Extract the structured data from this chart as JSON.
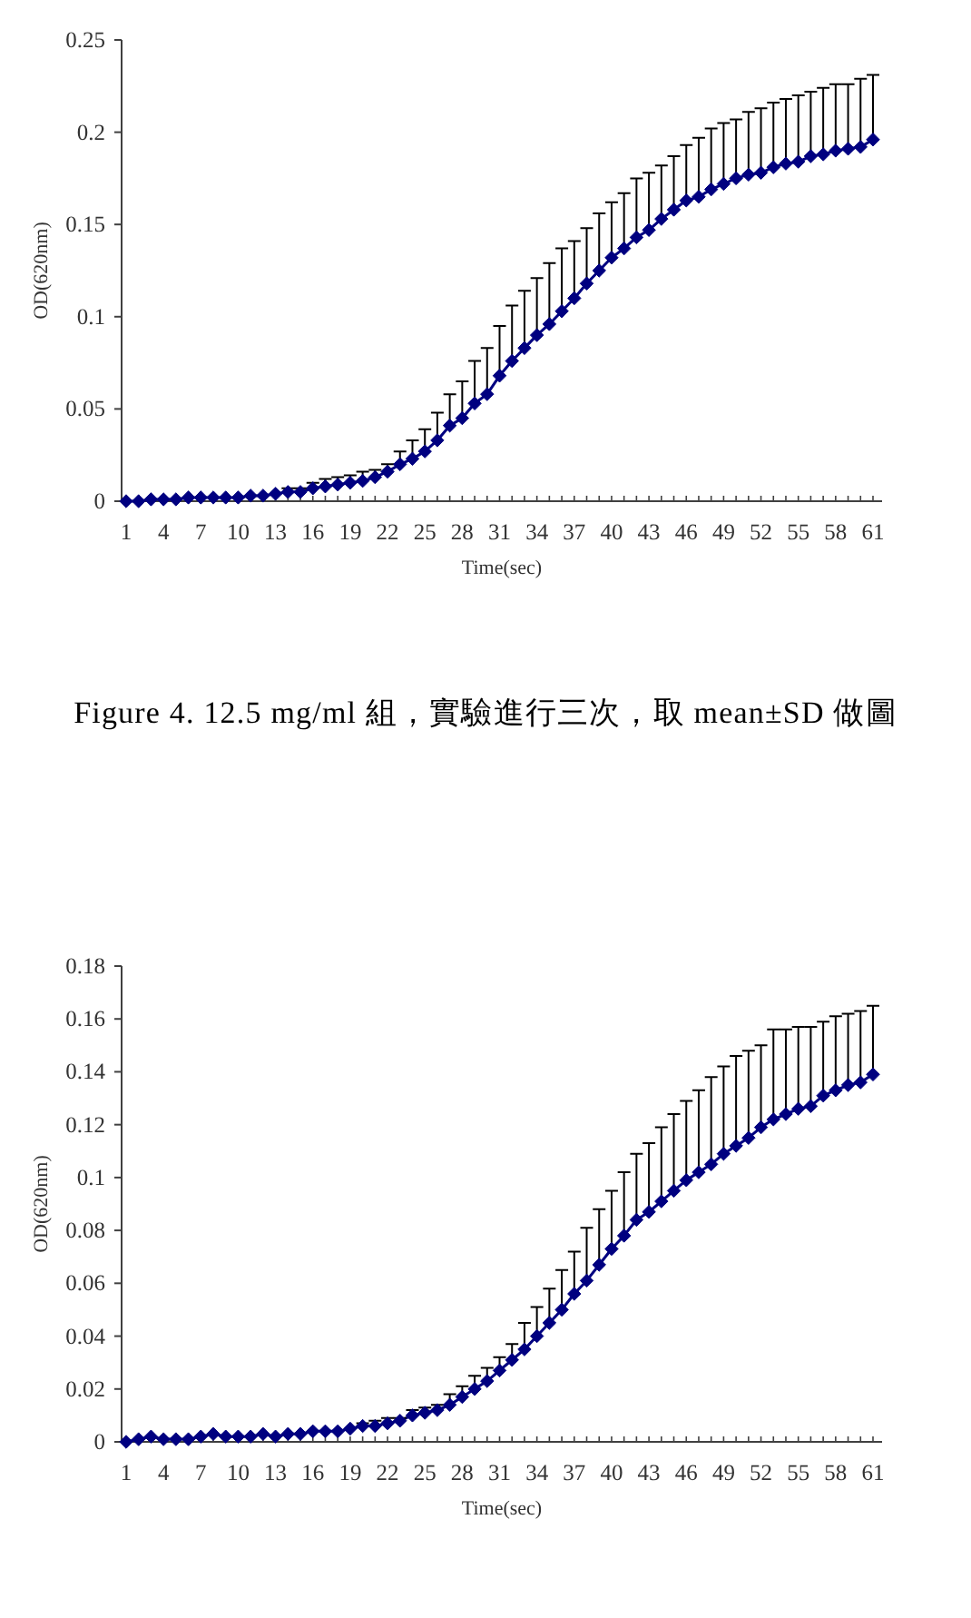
{
  "chart_data": [
    {
      "type": "line",
      "xlabel": "Time(sec)",
      "ylabel": "OD(620nm)",
      "marker": "diamond",
      "line_style": "solid",
      "ylim": [
        0,
        0.25
      ],
      "yticks": [
        0,
        0.05,
        0.1,
        0.15,
        0.2,
        0.25
      ],
      "categories": [
        "1",
        null,
        null,
        "4",
        null,
        null,
        "7",
        null,
        null,
        "10",
        null,
        null,
        "13",
        null,
        null,
        "16",
        null,
        null,
        "19",
        null,
        null,
        "22",
        null,
        null,
        "25",
        null,
        null,
        "28",
        null,
        null,
        "31",
        null,
        null,
        "34",
        null,
        null,
        "37",
        null,
        null,
        "40",
        null,
        null,
        "43",
        null,
        null,
        "46",
        null,
        null,
        "49",
        null,
        null,
        "52",
        null,
        null,
        "55",
        null,
        null,
        "58",
        null,
        null,
        "61"
      ],
      "series": [
        {
          "color": "#000080",
          "values": [
            0,
            0,
            0.001,
            0.001,
            0.001,
            0.002,
            0.002,
            0.002,
            0.002,
            0.002,
            0.003,
            0.003,
            0.004,
            0.005,
            0.005,
            0.007,
            0.008,
            0.009,
            0.01,
            0.011,
            0.013,
            0.016,
            0.02,
            0.023,
            0.027,
            0.033,
            0.041,
            0.045,
            0.053,
            0.058,
            0.068,
            0.076,
            0.083,
            0.09,
            0.096,
            0.103,
            0.11,
            0.118,
            0.125,
            0.132,
            0.137,
            0.143,
            0.147,
            0.153,
            0.158,
            0.163,
            0.165,
            0.169,
            0.172,
            0.175,
            0.177,
            0.178,
            0.181,
            0.183,
            0.184,
            0.187,
            0.188,
            0.19,
            0.191,
            0.192,
            0.196
          ],
          "errors": [
            null,
            null,
            null,
            null,
            null,
            null,
            null,
            null,
            null,
            null,
            null,
            null,
            null,
            [
              0.005,
              0.007
            ],
            [
              0.005,
              0.007
            ],
            [
              0.007,
              0.01
            ],
            [
              0.008,
              0.012
            ],
            [
              0.009,
              0.013
            ],
            [
              0.01,
              0.014
            ],
            [
              0.011,
              0.016
            ],
            [
              0.013,
              0.017
            ],
            [
              0.016,
              0.02
            ],
            [
              0.02,
              0.027
            ],
            [
              0.023,
              0.033
            ],
            [
              0.027,
              0.039
            ],
            [
              0.033,
              0.048
            ],
            [
              0.041,
              0.058
            ],
            [
              0.045,
              0.065
            ],
            [
              0.053,
              0.076
            ],
            [
              0.058,
              0.083
            ],
            [
              0.068,
              0.095
            ],
            [
              0.076,
              0.106
            ],
            [
              0.083,
              0.114
            ],
            [
              0.09,
              0.121
            ],
            [
              0.096,
              0.129
            ],
            [
              0.103,
              0.137
            ],
            [
              0.11,
              0.141
            ],
            [
              0.118,
              0.148
            ],
            [
              0.125,
              0.156
            ],
            [
              0.132,
              0.162
            ],
            [
              0.137,
              0.167
            ],
            [
              0.143,
              0.175
            ],
            [
              0.147,
              0.178
            ],
            [
              0.153,
              0.182
            ],
            [
              0.158,
              0.187
            ],
            [
              0.163,
              0.193
            ],
            [
              0.165,
              0.197
            ],
            [
              0.169,
              0.202
            ],
            [
              0.172,
              0.205
            ],
            [
              0.175,
              0.207
            ],
            [
              0.177,
              0.211
            ],
            [
              0.178,
              0.213
            ],
            [
              0.181,
              0.216
            ],
            [
              0.183,
              0.218
            ],
            [
              0.184,
              0.22
            ],
            [
              0.187,
              0.222
            ],
            [
              0.188,
              0.224
            ],
            [
              0.19,
              0.226
            ],
            [
              0.191,
              0.226
            ],
            [
              0.192,
              0.229
            ],
            [
              0.196,
              0.231
            ]
          ]
        }
      ],
      "annotations": [
        "Figure 4. 12.5 mg/ml 組，實驗進行三次，取 mean±SD 做圖"
      ]
    },
    {
      "type": "line",
      "xlabel": "Time(sec)",
      "ylabel": "OD(620nm)",
      "marker": "diamond",
      "line_style": "solid",
      "ylim": [
        0,
        0.18
      ],
      "yticks": [
        0,
        0.02,
        0.04,
        0.06,
        0.08,
        0.1,
        0.12,
        0.14,
        0.16,
        0.18
      ],
      "categories": [
        "1",
        null,
        null,
        "4",
        null,
        null,
        "7",
        null,
        null,
        "10",
        null,
        null,
        "13",
        null,
        null,
        "16",
        null,
        null,
        "19",
        null,
        null,
        "22",
        null,
        null,
        "25",
        null,
        null,
        "28",
        null,
        null,
        "31",
        null,
        null,
        "34",
        null,
        null,
        "37",
        null,
        null,
        "40",
        null,
        null,
        "43",
        null,
        null,
        "46",
        null,
        null,
        "49",
        null,
        null,
        "52",
        null,
        null,
        "55",
        null,
        null,
        "58",
        null,
        null,
        "61"
      ],
      "series": [
        {
          "color": "#000080",
          "values": [
            0,
            0.001,
            0.002,
            0.001,
            0.001,
            0.001,
            0.002,
            0.003,
            0.002,
            0.002,
            0.002,
            0.003,
            0.002,
            0.003,
            0.003,
            0.004,
            0.004,
            0.004,
            0.005,
            0.006,
            0.006,
            0.007,
            0.008,
            0.01,
            0.011,
            0.012,
            0.014,
            0.017,
            0.02,
            0.023,
            0.027,
            0.031,
            0.035,
            0.04,
            0.045,
            0.05,
            0.056,
            0.061,
            0.067,
            0.073,
            0.078,
            0.084,
            0.087,
            0.091,
            0.095,
            0.099,
            0.102,
            0.105,
            0.109,
            0.112,
            0.115,
            0.119,
            0.122,
            0.124,
            0.126,
            0.127,
            0.131,
            0.133,
            0.135,
            0.136,
            0.139
          ],
          "errors": [
            null,
            null,
            null,
            null,
            null,
            null,
            null,
            null,
            null,
            null,
            null,
            null,
            null,
            null,
            null,
            null,
            null,
            null,
            null,
            [
              0.006,
              0.007
            ],
            [
              0.006,
              0.008
            ],
            [
              0.007,
              0.009
            ],
            [
              0.008,
              0.009
            ],
            [
              0.01,
              0.012
            ],
            [
              0.011,
              0.013
            ],
            [
              0.012,
              0.014
            ],
            [
              0.014,
              0.018
            ],
            [
              0.017,
              0.021
            ],
            [
              0.02,
              0.025
            ],
            [
              0.023,
              0.028
            ],
            [
              0.027,
              0.032
            ],
            [
              0.031,
              0.037
            ],
            [
              0.035,
              0.045
            ],
            [
              0.04,
              0.051
            ],
            [
              0.045,
              0.058
            ],
            [
              0.05,
              0.065
            ],
            [
              0.056,
              0.072
            ],
            [
              0.061,
              0.081
            ],
            [
              0.067,
              0.088
            ],
            [
              0.073,
              0.095
            ],
            [
              0.078,
              0.102
            ],
            [
              0.084,
              0.109
            ],
            [
              0.087,
              0.113
            ],
            [
              0.091,
              0.119
            ],
            [
              0.095,
              0.124
            ],
            [
              0.099,
              0.129
            ],
            [
              0.102,
              0.133
            ],
            [
              0.105,
              0.138
            ],
            [
              0.109,
              0.142
            ],
            [
              0.112,
              0.146
            ],
            [
              0.115,
              0.148
            ],
            [
              0.119,
              0.15
            ],
            [
              0.122,
              0.156
            ],
            [
              0.124,
              0.156
            ],
            [
              0.126,
              0.157
            ],
            [
              0.127,
              0.157
            ],
            [
              0.131,
              0.159
            ],
            [
              0.133,
              0.161
            ],
            [
              0.135,
              0.162
            ],
            [
              0.136,
              0.163
            ],
            [
              0.139,
              0.165
            ]
          ]
        }
      ]
    }
  ]
}
